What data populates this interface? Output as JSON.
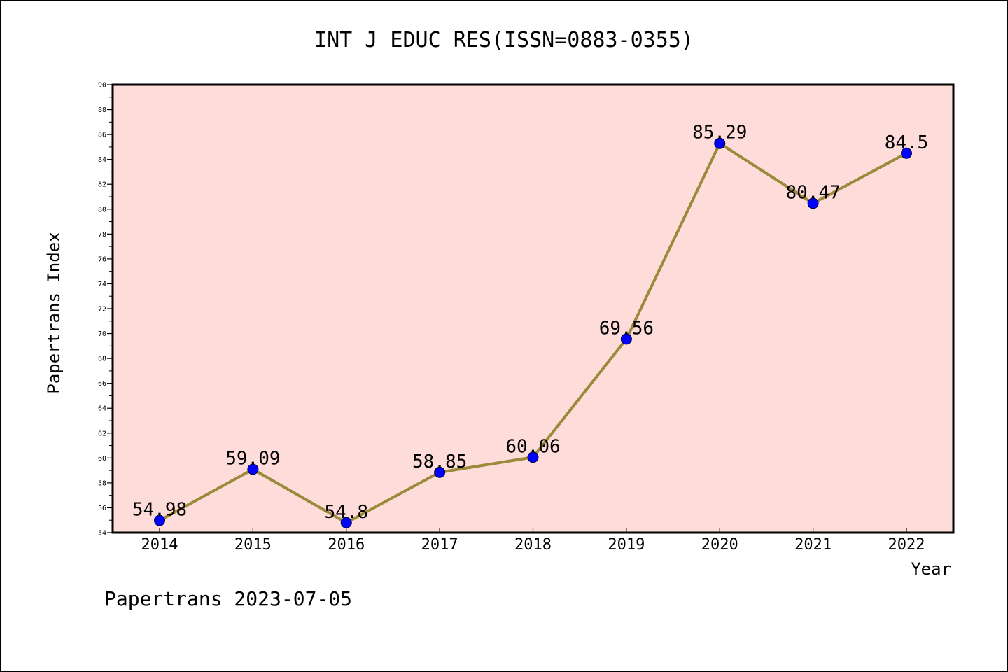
{
  "chart_data": {
    "type": "line",
    "title": "INT J EDUC RES(ISSN=0883-0355)",
    "xlabel": "Year",
    "ylabel": "Papertrans Index",
    "categories": [
      "2014",
      "2015",
      "2016",
      "2017",
      "2018",
      "2019",
      "2020",
      "2021",
      "2022"
    ],
    "series": [
      {
        "values": [
          54.98,
          59.09,
          54.8,
          58.85,
          60.06,
          69.56,
          85.29,
          80.47,
          84.5
        ],
        "labels": [
          "54.98",
          "59.09",
          "54.8",
          "58.85",
          "60.06",
          "69.56",
          "85.29",
          "80.47",
          "84.5"
        ]
      }
    ],
    "ylim": [
      54,
      90
    ],
    "yticks": [
      "54",
      "56",
      "58",
      "60",
      "62",
      "64",
      "66",
      "68",
      "70",
      "72",
      "74",
      "76",
      "78",
      "80",
      "82",
      "84",
      "86",
      "88",
      "90"
    ],
    "grid": false,
    "legend": "none",
    "colors": {
      "plot_background": "#fddcd9",
      "line": "#9a8a3a",
      "marker": "#0000ff",
      "marker_edge": "#000033",
      "frame": "#000000"
    }
  },
  "footer": {
    "text": "Papertrans 2023-07-05"
  }
}
